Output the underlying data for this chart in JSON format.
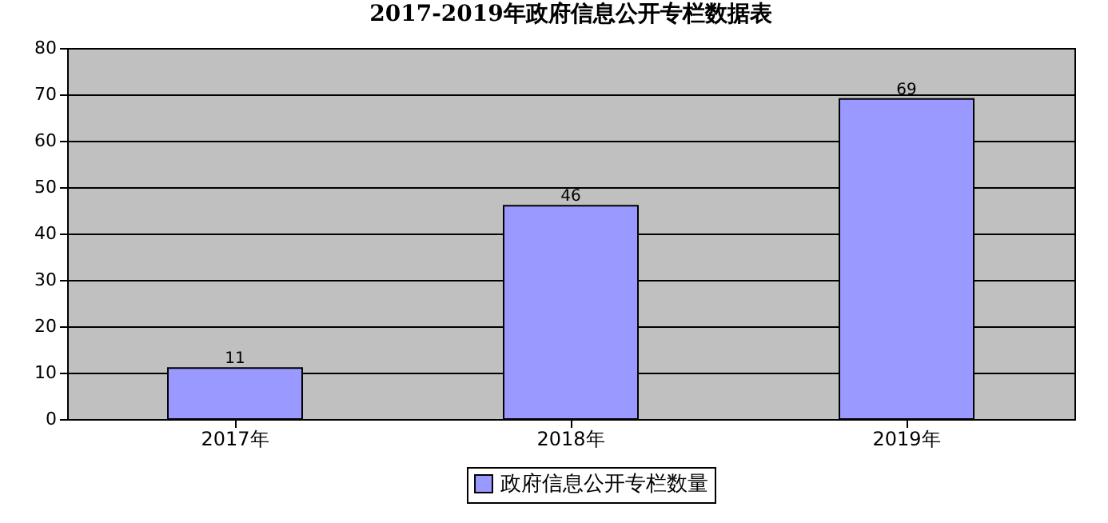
{
  "chart_data": {
    "type": "bar",
    "title": "2017-2019年政府信息公开专栏数据表",
    "categories": [
      "2017年",
      "2018年",
      "2019年"
    ],
    "series": [
      {
        "name": "政府信息公开专栏数量",
        "color": "#9999ff",
        "values": [
          11,
          46,
          69
        ]
      }
    ],
    "ylim": [
      0,
      80
    ],
    "yticks": [
      0,
      10,
      20,
      30,
      40,
      50,
      60,
      70,
      80
    ],
    "grid": "y",
    "legend": "bottom",
    "data_labels": true
  }
}
